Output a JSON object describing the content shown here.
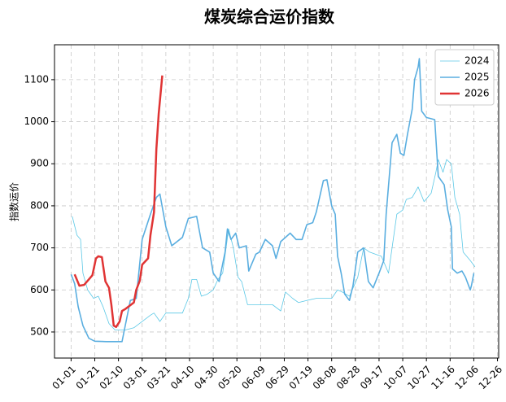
{
  "chart_data": {
    "type": "line",
    "title": "煤炭综合运价指数",
    "y_label": "指数运价",
    "xlim": [
      -14,
      361
    ],
    "ylim": [
      438,
      1183
    ],
    "xticks": [
      {
        "value": 0,
        "label": "01-01"
      },
      {
        "value": 20,
        "label": "01-21"
      },
      {
        "value": 40,
        "label": "02-10"
      },
      {
        "value": 60,
        "label": "03-01"
      },
      {
        "value": 80,
        "label": "03-21"
      },
      {
        "value": 100,
        "label": "04-10"
      },
      {
        "value": 120,
        "label": "04-30"
      },
      {
        "value": 140,
        "label": "05-20"
      },
      {
        "value": 160,
        "label": "06-09"
      },
      {
        "value": 180,
        "label": "06-29"
      },
      {
        "value": 200,
        "label": "07-19"
      },
      {
        "value": 220,
        "label": "08-08"
      },
      {
        "value": 240,
        "label": "08-28"
      },
      {
        "value": 260,
        "label": "09-17"
      },
      {
        "value": 280,
        "label": "10-07"
      },
      {
        "value": 300,
        "label": "10-27"
      },
      {
        "value": 320,
        "label": "11-16"
      },
      {
        "value": 340,
        "label": "12-06"
      },
      {
        "value": 360,
        "label": "12-26"
      }
    ],
    "yticks": [
      500,
      600,
      700,
      800,
      900,
      1000,
      1100
    ],
    "grid": true,
    "legend": "upper right",
    "series": [
      {
        "name": "2024",
        "color": "#5bc8e6",
        "x": [
          1,
          5,
          8,
          10,
          14,
          19,
          23,
          27,
          32,
          37,
          46,
          53,
          60,
          67,
          70,
          75,
          80,
          87,
          94,
          99,
          102,
          106,
          110,
          115,
          120,
          124,
          128,
          133,
          137,
          141,
          144,
          149,
          159,
          170,
          177,
          181,
          187,
          192,
          199,
          207,
          214,
          220,
          225,
          229,
          235,
          242,
          247,
          252,
          257,
          262,
          268,
          271,
          275,
          280,
          283,
          288,
          293,
          298,
          304,
          308,
          310,
          314,
          317,
          321,
          324,
          328,
          331,
          337,
          341
        ],
        "values": [
          775,
          730,
          720,
          640,
          600,
          580,
          585,
          560,
          520,
          505,
          505,
          510,
          525,
          540,
          545,
          525,
          545,
          545,
          545,
          580,
          625,
          625,
          585,
          590,
          600,
          625,
          640,
          745,
          700,
          630,
          620,
          565,
          565,
          565,
          550,
          595,
          580,
          570,
          575,
          580,
          580,
          580,
          600,
          595,
          585,
          630,
          700,
          690,
          685,
          680,
          640,
          700,
          780,
          790,
          815,
          820,
          845,
          810,
          830,
          880,
          910,
          880,
          910,
          900,
          820,
          780,
          690,
          670,
          655
        ]
      },
      {
        "name": "2025",
        "color": "#5aaee0",
        "x": [
          0,
          3,
          6,
          10,
          15,
          20,
          30,
          43,
          50,
          55,
          60,
          67,
          72,
          75,
          80,
          85,
          94,
          99,
          106,
          111,
          117,
          120,
          125,
          130,
          132,
          135,
          139,
          142,
          148,
          150,
          156,
          159,
          164,
          170,
          173,
          177,
          185,
          190,
          195,
          199,
          204,
          207,
          213,
          216,
          220,
          223,
          225,
          228,
          231,
          235,
          238,
          242,
          247,
          251,
          255,
          260,
          264,
          266,
          271,
          275,
          278,
          281,
          284,
          288,
          290,
          293,
          294,
          296,
          300,
          307,
          310,
          315,
          318,
          321,
          322,
          326,
          330,
          333,
          337,
          338,
          340
        ],
        "values": [
          637,
          615,
          560,
          515,
          485,
          478,
          477,
          477,
          575,
          580,
          720,
          780,
          820,
          828,
          750,
          705,
          725,
          770,
          775,
          700,
          690,
          640,
          620,
          690,
          745,
          720,
          735,
          700,
          705,
          645,
          685,
          690,
          720,
          705,
          675,
          715,
          735,
          720,
          720,
          755,
          760,
          785,
          860,
          862,
          800,
          780,
          680,
          640,
          590,
          575,
          610,
          690,
          700,
          620,
          605,
          640,
          670,
          780,
          950,
          970,
          925,
          920,
          970,
          1030,
          1100,
          1130,
          1150,
          1025,
          1010,
          1005,
          870,
          850,
          790,
          750,
          650,
          640,
          645,
          630,
          600,
          610,
          640
        ]
      },
      {
        "name": "2026",
        "color": "#e03434",
        "x": [
          3,
          7,
          11,
          15,
          18,
          21,
          23,
          26,
          29,
          32,
          34,
          36,
          38,
          41,
          43,
          46,
          53,
          55,
          58,
          60,
          65,
          67,
          70,
          72,
          74,
          77
        ],
        "values": [
          637,
          610,
          612,
          625,
          635,
          675,
          680,
          678,
          620,
          605,
          565,
          515,
          512,
          525,
          550,
          555,
          570,
          600,
          622,
          660,
          675,
          730,
          785,
          935,
          1020,
          1110
        ]
      }
    ]
  }
}
